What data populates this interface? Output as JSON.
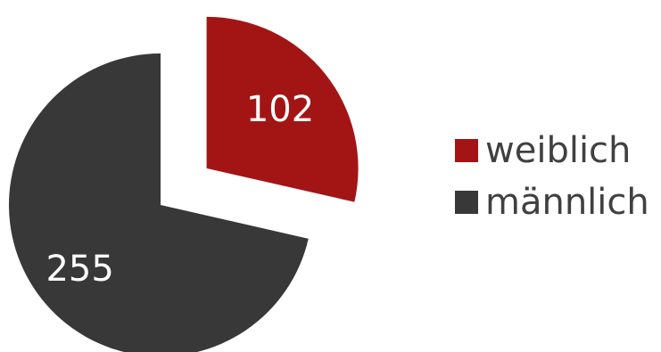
{
  "chart_data": {
    "type": "pie",
    "title": "",
    "exploded": true,
    "slices": [
      {
        "label": "weiblich",
        "value": 102,
        "color": "#a31515",
        "label_color": "#ffffff"
      },
      {
        "label": "männlich",
        "value": 255,
        "color": "#383838",
        "label_color": "#ffffff"
      }
    ],
    "data_labels": [
      "102",
      "255"
    ],
    "legend": {
      "position": "right",
      "items": [
        {
          "label": "weiblich",
          "color": "#a31515"
        },
        {
          "label": "männlich",
          "color": "#383838"
        }
      ]
    }
  }
}
